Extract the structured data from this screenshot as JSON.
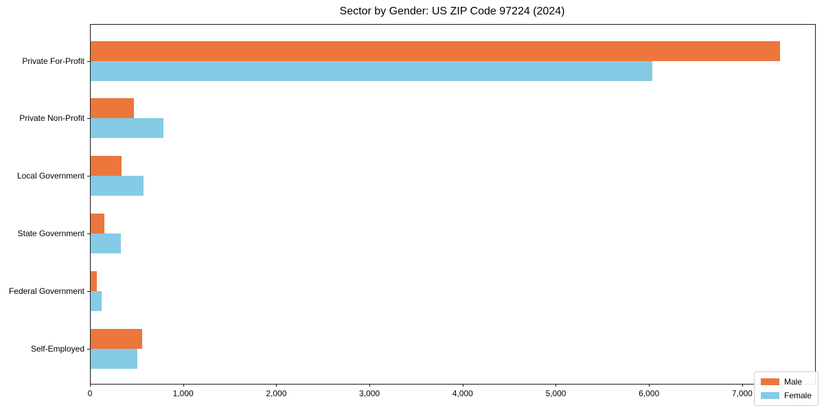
{
  "chart_data": {
    "type": "bar",
    "orientation": "horizontal",
    "title": "Sector by Gender: US ZIP Code 97224 (2024)",
    "categories": [
      "Private For-Profit",
      "Private Non-Profit",
      "Local Government",
      "State Government",
      "Federal Government",
      "Self-Employed"
    ],
    "series": [
      {
        "name": "Male",
        "color": "#EC763B",
        "values": [
          7400,
          465,
          330,
          145,
          65,
          555
        ]
      },
      {
        "name": "Female",
        "color": "#85CBE5",
        "values": [
          6030,
          780,
          565,
          325,
          115,
          500
        ]
      }
    ],
    "xlabel": "",
    "ylabel": "",
    "xlim": [
      0,
      7775
    ],
    "xticks": [
      0,
      1000,
      2000,
      3000,
      4000,
      5000,
      6000,
      7000
    ],
    "xtick_labels": [
      "0",
      "1,000",
      "2,000",
      "3,000",
      "4,000",
      "5,000",
      "6,000",
      "7,000"
    ],
    "grid": false,
    "legend_position": "lower right"
  }
}
